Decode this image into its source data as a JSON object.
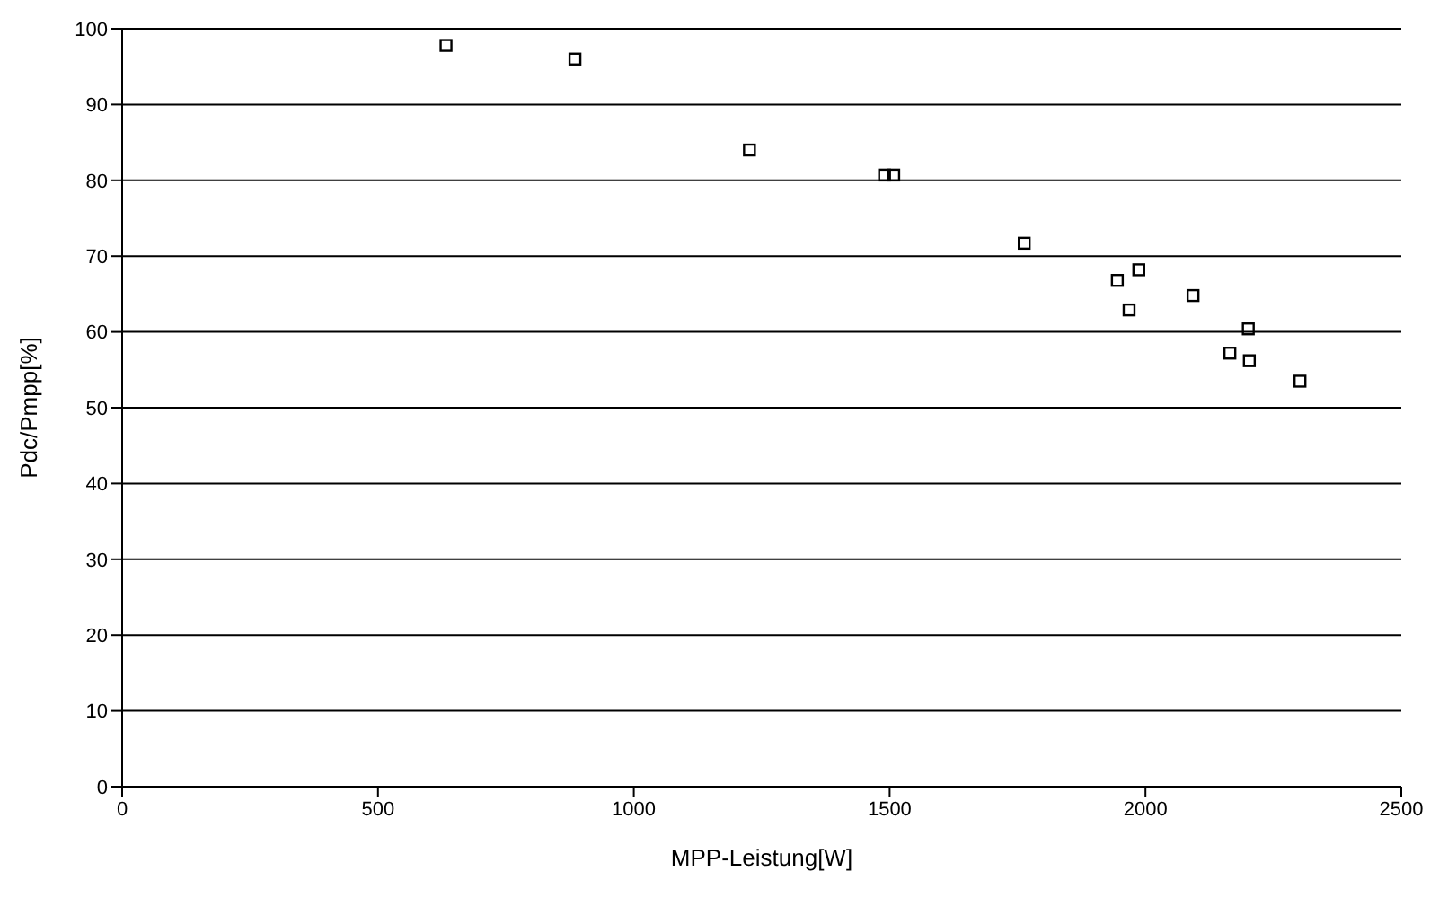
{
  "chart_data": {
    "type": "scatter",
    "xlabel": "MPP-Leistung[W]",
    "ylabel": "Pdc/Pmpp[%]",
    "x": [
      633,
      885,
      1226,
      1490,
      1508,
      1763,
      1945,
      1987,
      1968,
      2093,
      2201,
      2165,
      2203,
      2302
    ],
    "series": [
      {
        "color": "#000000",
        "values": [
          97.8,
          96.0,
          84.0,
          80.7,
          80.7,
          71.7,
          66.8,
          68.2,
          62.9,
          64.8,
          60.4,
          57.2,
          56.2,
          53.5
        ]
      }
    ],
    "xlim": [
      0,
      2500
    ],
    "xticks": [
      0,
      500,
      1000,
      1500,
      2000,
      2500
    ],
    "ylim": [
      0,
      100
    ],
    "yticks": [
      0,
      10,
      20,
      30,
      40,
      50,
      60,
      70,
      80,
      90,
      100
    ],
    "grid": "y",
    "marker": "square",
    "legend": false
  }
}
